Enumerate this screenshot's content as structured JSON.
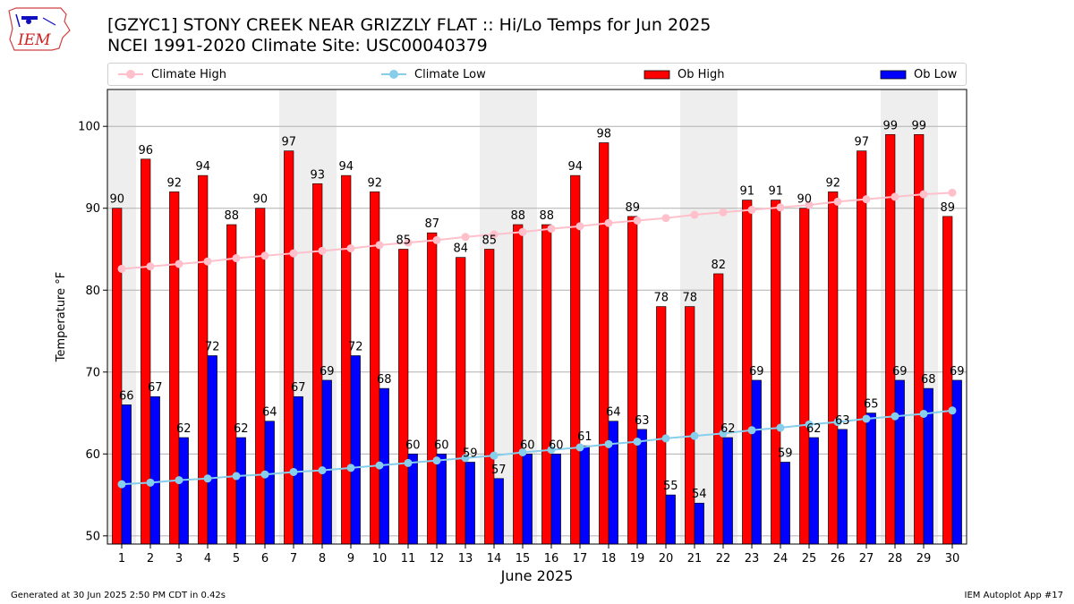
{
  "header": {
    "title_line1": "[GZYC1] STONY CREEK NEAR GRIZZLY FLAT :: Hi/Lo Temps for Jun 2025",
    "title_line2": "NCEI 1991-2020 Climate Site: USC00040379",
    "logo_text": "IEM"
  },
  "footer": {
    "generated": "Generated at 30 Jun 2025 2:50 PM CDT in 0.42s",
    "app": "IEM Autoplot App #17"
  },
  "legend": {
    "climate_high": "Climate High",
    "climate_low": "Climate Low",
    "ob_high": "Ob High",
    "ob_low": "Ob Low"
  },
  "colors": {
    "ob_high": "#ff0000",
    "ob_low": "#0000ff",
    "climate_high": "#ffc0cb",
    "climate_low": "#87ceeb",
    "weekend_shade": "#eeeeee",
    "grid": "#b0b0b0"
  },
  "chart_data": {
    "type": "bar",
    "xlabel": "June 2025",
    "ylabel": "Temperature °F",
    "ylim": [
      49,
      104.5
    ],
    "yticks": [
      50,
      60,
      70,
      80,
      90,
      100
    ],
    "categories": [
      "1",
      "2",
      "3",
      "4",
      "5",
      "6",
      "7",
      "8",
      "9",
      "10",
      "11",
      "12",
      "13",
      "14",
      "15",
      "16",
      "17",
      "18",
      "19",
      "20",
      "21",
      "22",
      "23",
      "24",
      "25",
      "26",
      "27",
      "28",
      "29",
      "30"
    ],
    "weekend_days": [
      1,
      7,
      8,
      14,
      15,
      21,
      22,
      28,
      29
    ],
    "grid": "horizontal",
    "series": [
      {
        "name": "Ob High",
        "kind": "bar",
        "values": [
          90,
          96,
          92,
          94,
          88,
          90,
          97,
          93,
          94,
          92,
          85,
          87,
          84,
          85,
          88,
          88,
          94,
          98,
          89,
          78,
          78,
          82,
          91,
          91,
          90,
          92,
          97,
          99,
          99,
          89
        ],
        "labels": [
          "90",
          "96",
          "92",
          "94",
          "88",
          "90",
          "97",
          "93",
          "94",
          "92",
          "85",
          "87",
          "84",
          "85",
          "88",
          "88",
          "94",
          "98",
          "89",
          "78",
          "78",
          "82",
          "91",
          "91",
          "90",
          "92",
          "97",
          "99",
          "99",
          "89"
        ]
      },
      {
        "name": "Ob Low",
        "kind": "bar",
        "values": [
          66,
          67,
          62,
          72,
          62,
          64,
          67,
          69,
          72,
          68,
          60,
          60,
          59,
          57,
          60,
          60,
          61,
          64,
          63,
          55,
          54,
          62,
          69,
          59,
          62,
          63,
          65,
          69,
          68,
          69
        ],
        "labels": [
          "66",
          "67",
          "62",
          "72",
          "62",
          "64",
          "67",
          "69",
          "72",
          "68",
          "60",
          "60",
          "59",
          "57",
          "60",
          "60",
          "61",
          "64",
          "63",
          "55",
          "54",
          "62",
          "69",
          "59",
          "62",
          "63",
          "65",
          "69",
          "68",
          "69"
        ]
      },
      {
        "name": "Climate High",
        "kind": "line",
        "values": [
          82.6,
          82.9,
          83.2,
          83.5,
          83.9,
          84.2,
          84.5,
          84.8,
          85.1,
          85.5,
          85.8,
          86.1,
          86.5,
          86.8,
          87.1,
          87.5,
          87.8,
          88.2,
          88.5,
          88.8,
          89.2,
          89.5,
          89.8,
          90.1,
          90.4,
          90.8,
          91.1,
          91.4,
          91.7,
          91.9
        ]
      },
      {
        "name": "Climate Low",
        "kind": "line",
        "values": [
          56.3,
          56.5,
          56.8,
          57.0,
          57.3,
          57.5,
          57.8,
          58.0,
          58.3,
          58.6,
          58.9,
          59.2,
          59.5,
          59.8,
          60.2,
          60.5,
          60.8,
          61.2,
          61.5,
          61.9,
          62.2,
          62.5,
          62.9,
          63.2,
          63.6,
          63.9,
          64.3,
          64.6,
          64.9,
          65.3
        ]
      }
    ]
  }
}
